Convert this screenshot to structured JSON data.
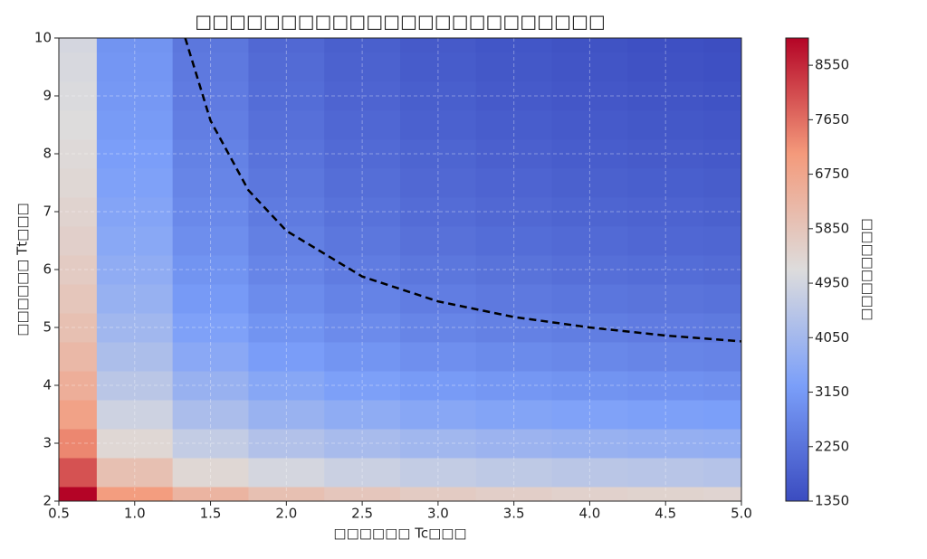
{
  "chart_data": {
    "type": "contour",
    "title": "□□□□□□□□□□□□□□□□□□□□□□□□",
    "x_label": "□□□□□□ Tc□□□",
    "y_label": "□□□□□□ Tt□□□",
    "x": [
      0.5,
      1,
      1.5,
      2,
      2.5,
      3,
      3.5,
      4,
      4.5,
      5
    ],
    "y": [
      2,
      2.5,
      3,
      3.5,
      4,
      4.5,
      5,
      5.5,
      6,
      6.5,
      7,
      7.5,
      8,
      8.5,
      9,
      9.5,
      10
    ],
    "z": [
      [
        9000,
        7000,
        6333,
        6000,
        5800,
        5667,
        5571,
        5500,
        5444,
        5400
      ],
      [
        8000,
        6000,
        5333,
        5000,
        4800,
        4667,
        4571,
        4500,
        4444,
        4400
      ],
      [
        7333,
        5333,
        4666,
        4333,
        4133,
        4000,
        3904,
        3833,
        3777,
        3733
      ],
      [
        6857,
        4857,
        4190,
        3857,
        3657,
        3524,
        3428,
        3357,
        3301,
        3257
      ],
      [
        6500,
        4500,
        3833,
        3500,
        3300,
        3167,
        3071,
        3000,
        2944,
        2900
      ],
      [
        6222,
        4222,
        3555,
        3222,
        3022,
        2889,
        2793,
        2722,
        2666,
        2622
      ],
      [
        6000,
        4000,
        3333,
        3000,
        2800,
        2667,
        2571,
        2500,
        2444,
        2400
      ],
      [
        5818,
        3818,
        3151,
        2818,
        2618,
        2485,
        2389,
        2318,
        2262,
        2218
      ],
      [
        5667,
        3667,
        3000,
        2667,
        2467,
        2334,
        2238,
        2167,
        2111,
        2067
      ],
      [
        5538,
        3538,
        2871,
        2538,
        2338,
        2205,
        2109,
        2038,
        1982,
        1938
      ],
      [
        5429,
        3429,
        2762,
        2429,
        2229,
        2096,
        2000,
        1929,
        1873,
        1829
      ],
      [
        5333,
        3333,
        2666,
        2333,
        2133,
        2000,
        1904,
        1833,
        1777,
        1733
      ],
      [
        5250,
        3250,
        2583,
        2250,
        2050,
        1917,
        1821,
        1750,
        1694,
        1650
      ],
      [
        5176,
        3176,
        2509,
        2176,
        1976,
        1843,
        1747,
        1676,
        1620,
        1576
      ],
      [
        5111,
        3111,
        2444,
        2111,
        1911,
        1778,
        1682,
        1611,
        1555,
        1511
      ],
      [
        5053,
        3053,
        2386,
        2053,
        1853,
        1720,
        1624,
        1553,
        1497,
        1453
      ],
      [
        5000,
        3000,
        2333,
        2000,
        1800,
        1667,
        1571,
        1500,
        1444,
        1400
      ]
    ],
    "contour_line": {
      "x": [
        1.333,
        1.5,
        1.75,
        2,
        2.5,
        3,
        3.5,
        4,
        4.5,
        5
      ],
      "y": [
        10,
        8.57,
        7.37,
        6.67,
        5.88,
        5.45,
        5.18,
        5.0,
        4.86,
        4.76
      ]
    },
    "xlim": [
      0.5,
      5
    ],
    "ylim": [
      2,
      10
    ],
    "xticks": [
      0.5,
      {
        "value": 1,
        "label": "1.0"
      },
      1.5,
      {
        "value": 2,
        "label": "2.0"
      },
      2.5,
      {
        "value": 3,
        "label": "3.0"
      },
      3.5,
      {
        "value": 4,
        "label": "4.0"
      },
      4.5,
      {
        "value": 5,
        "label": "5.0"
      }
    ],
    "yticks": [
      2,
      3,
      4,
      5,
      6,
      7,
      8,
      9,
      10
    ],
    "grid": true,
    "colorbar": {
      "label": "□□□□□□□□",
      "lim": [
        1350,
        9000
      ],
      "ticks": [
        1350,
        2250,
        3150,
        4050,
        4950,
        5850,
        6750,
        7650,
        8550
      ]
    }
  }
}
